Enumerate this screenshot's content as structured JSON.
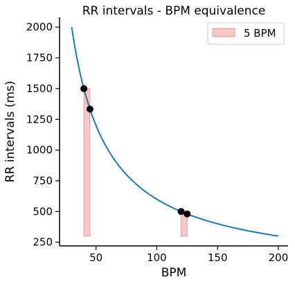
{
  "chart_data": {
    "type": "line",
    "title": "RR intervals - BPM equivalence",
    "xlabel": "BPM",
    "ylabel": "RR intervals (ms)",
    "xlim": [
      20,
      208
    ],
    "ylim": [
      220,
      2080
    ],
    "xticks": [
      50,
      100,
      150,
      200
    ],
    "yticks": [
      250,
      500,
      750,
      1000,
      1250,
      1500,
      1750,
      2000
    ],
    "grid": false,
    "legend_position": "top-right",
    "series": [
      {
        "kind": "curve",
        "formula": "60000 / BPM",
        "x_range": [
          30,
          200
        ],
        "color": "#1f77b4"
      },
      {
        "kind": "points",
        "color": "#000000",
        "x": [
          40,
          45,
          120,
          125
        ],
        "y": [
          1500,
          1333.3,
          500,
          480
        ]
      },
      {
        "kind": "bands",
        "name": "5 BPM",
        "color": "#d62728",
        "bands": [
          {
            "x": [
              40,
              45
            ],
            "y": [
              300,
              1500
            ]
          },
          {
            "x": [
              120,
              125
            ],
            "y": [
              300,
              500
            ]
          }
        ]
      }
    ]
  }
}
